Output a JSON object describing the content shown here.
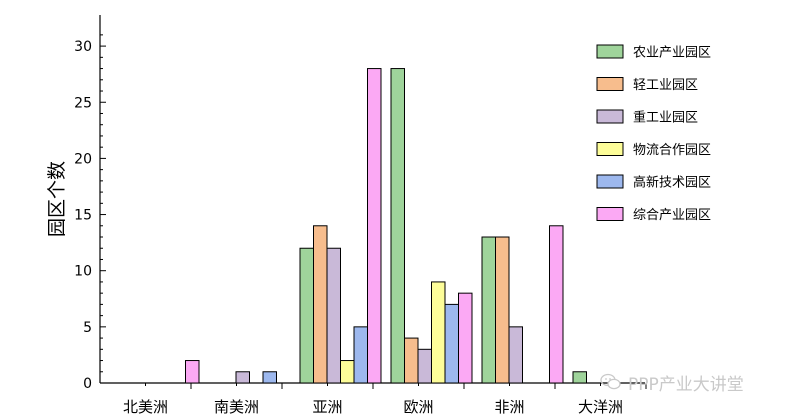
{
  "chart_data": {
    "type": "bar",
    "ylabel": "园区个数",
    "ylim": [
      0,
      32
    ],
    "yticks": [
      0,
      5,
      10,
      15,
      20,
      25,
      30
    ],
    "categories": [
      "北美洲",
      "南美洲",
      "亚洲",
      "欧洲",
      "非洲",
      "大洋洲"
    ],
    "legend_position": "top-right",
    "series": [
      {
        "name": "农业产业园区",
        "color": "#9fd49b",
        "values": [
          0,
          0,
          12,
          28,
          13,
          1
        ]
      },
      {
        "name": "轻工业园区",
        "color": "#f7bd8d",
        "values": [
          0,
          0,
          14,
          4,
          13,
          0
        ]
      },
      {
        "name": "重工业园区",
        "color": "#c9b9d8",
        "values": [
          0,
          1,
          12,
          3,
          5,
          0
        ]
      },
      {
        "name": "物流合作园区",
        "color": "#fdfd99",
        "values": [
          0,
          0,
          2,
          9,
          0,
          0
        ]
      },
      {
        "name": "高新技术园区",
        "color": "#9db8ee",
        "values": [
          0,
          1,
          5,
          7,
          0,
          0
        ]
      },
      {
        "name": "综合产业园区",
        "color": "#fba9f4",
        "values": [
          2,
          0,
          28,
          8,
          14,
          0
        ]
      }
    ]
  },
  "watermark": {
    "text": "PPP产业大讲堂"
  }
}
